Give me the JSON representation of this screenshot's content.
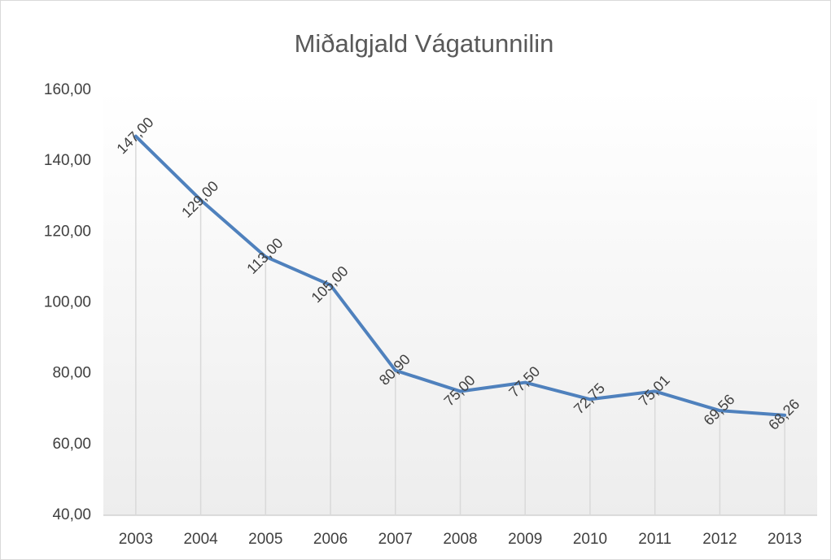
{
  "chart_data": {
    "type": "line",
    "title": "Miðalgjald Vágatunnilin",
    "categories": [
      "2003",
      "2004",
      "2005",
      "2006",
      "2007",
      "2008",
      "2009",
      "2010",
      "2011",
      "2012",
      "2013"
    ],
    "values": [
      147,
      129,
      113,
      105,
      80.9,
      75,
      77.5,
      72.75,
      75.01,
      69.56,
      68.26
    ],
    "value_labels": [
      "147,00",
      "129,00",
      "113,00",
      "105,00",
      "80,90",
      "75,00",
      "77,50",
      "72,75",
      "75,01",
      "69,56",
      "68,26"
    ],
    "color": "#4f81bd",
    "ylim": [
      40,
      160
    ],
    "yticks": [
      {
        "value": 40,
        "label": "40,00"
      },
      {
        "value": 60,
        "label": "60,00"
      },
      {
        "value": 80,
        "label": "80,00"
      },
      {
        "value": 100,
        "label": "100,00"
      },
      {
        "value": 120,
        "label": "120,00"
      },
      {
        "value": 140,
        "label": "140,00"
      },
      {
        "value": 160,
        "label": "160,00"
      }
    ],
    "drop_lines": true
  }
}
